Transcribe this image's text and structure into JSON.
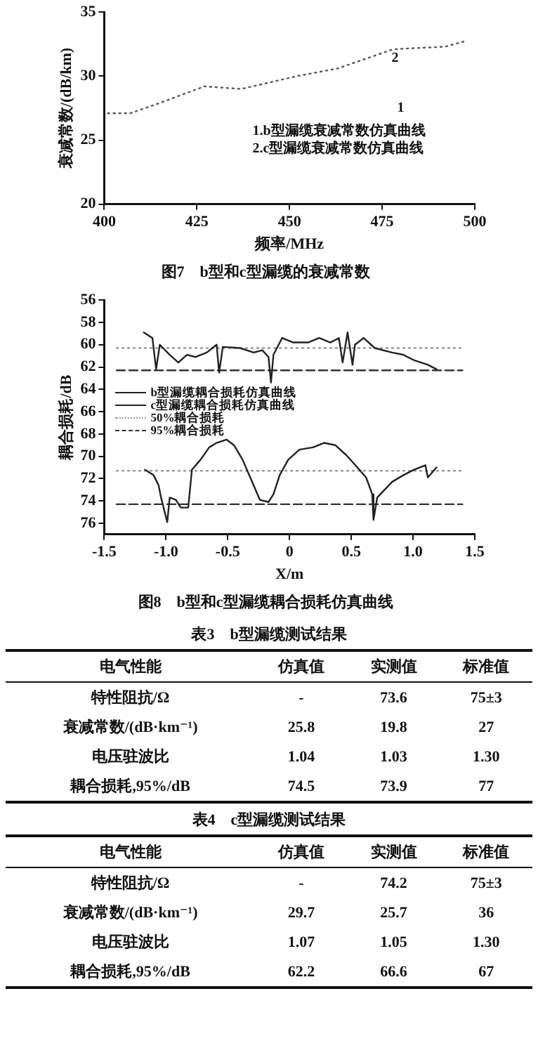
{
  "chart_data": [
    {
      "type": "line",
      "title": "图7　b型和c型漏缆的衰减常数",
      "xlabel": "频率/MHz",
      "ylabel": "衰减常数/(dB/km)",
      "xlim": [
        400,
        500
      ],
      "ylim": [
        20,
        35
      ],
      "xticks": [
        400,
        425,
        450,
        475,
        500
      ],
      "yticks": [
        20,
        25,
        30,
        35
      ],
      "series": [
        {
          "color": "#555555",
          "line_style": "dotted",
          "x": [
            401,
            407,
            414,
            427,
            437,
            443,
            452,
            463,
            478,
            492,
            497
          ],
          "values": [
            27.1,
            27.1,
            27.8,
            29.2,
            29.0,
            29.4,
            30.0,
            30.6,
            32.1,
            32.3,
            32.7
          ]
        }
      ],
      "annotations": [
        "1.b型漏缆衰减常数仿真曲线",
        "2.c型漏缆衰减常数仿真曲线",
        "2",
        "1"
      ]
    },
    {
      "type": "line",
      "title": "图8　b型和c型漏缆耦合损耗仿真曲线",
      "xlabel": "X/m",
      "ylabel": "耦合损耗/dB",
      "xlim": [
        -1.5,
        1.5
      ],
      "ylim": [
        77,
        56
      ],
      "xticks": [
        -1.5,
        {
          "value": -1,
          "label": "-1.0"
        },
        -0.5,
        0,
        0.5,
        {
          "value": 1,
          "label": "1.0"
        },
        1.5
      ],
      "yticks": [
        56,
        58,
        60,
        62,
        64,
        66,
        68,
        70,
        72,
        74,
        76
      ],
      "legend": "left",
      "series": [
        {
          "name": "b型漏缆耦合损耗仿真曲线",
          "color": "#222222",
          "line_style": "solid",
          "x": [
            -1.18,
            -1.11,
            -1.08,
            -1.05,
            -0.97,
            -0.9,
            -0.83,
            -0.76,
            -0.67,
            -0.59,
            -0.57,
            -0.54,
            -0.4,
            -0.29,
            -0.22,
            -0.17,
            -0.15,
            -0.13,
            -0.06,
            0.03,
            0.15,
            0.24,
            0.33,
            0.4,
            0.43,
            0.47,
            0.51,
            0.53,
            0.6,
            0.69,
            0.83,
            0.92,
            1.01,
            1.12,
            1.19
          ],
          "values": [
            58.9,
            59.4,
            62.2,
            60.0,
            60.9,
            61.6,
            60.9,
            61.1,
            60.7,
            60.0,
            62.5,
            60.2,
            60.3,
            60.7,
            60.5,
            61.1,
            63.4,
            60.9,
            59.4,
            59.8,
            59.8,
            59.4,
            59.8,
            59.4,
            61.6,
            58.9,
            61.8,
            60.0,
            59.4,
            60.3,
            60.7,
            60.9,
            61.4,
            61.8,
            62.2
          ]
        },
        {
          "name": "c型漏缆耦合损耗仿真曲线",
          "color": "#222222",
          "line_style": "solid",
          "x": [
            -1.17,
            -1.1,
            -1.06,
            -1.04,
            -0.99,
            -0.97,
            -0.92,
            -0.88,
            -0.82,
            -0.79,
            -0.72,
            -0.65,
            -0.59,
            -0.51,
            -0.45,
            -0.38,
            -0.31,
            -0.24,
            -0.17,
            -0.13,
            -0.08,
            -0.01,
            0.08,
            0.19,
            0.28,
            0.37,
            0.46,
            0.55,
            0.62,
            0.67,
            0.68,
            0.71,
            0.83,
            0.92,
            1.01,
            1.1,
            1.12,
            1.19
          ],
          "values": [
            71.2,
            71.7,
            72.6,
            73.7,
            75.9,
            73.7,
            73.9,
            74.6,
            74.6,
            71.2,
            70.3,
            69.2,
            68.8,
            68.5,
            69.0,
            70.3,
            72.1,
            73.9,
            74.1,
            73.4,
            71.7,
            70.3,
            69.4,
            69.2,
            68.8,
            69.0,
            69.9,
            71.0,
            71.9,
            73.4,
            75.7,
            73.7,
            72.3,
            71.7,
            71.2,
            70.8,
            71.9,
            71.0
          ]
        },
        {
          "name": "50%耦合损耗",
          "color": "#999999",
          "line_style": "dotted",
          "x": [
            -1.4,
            1.4
          ],
          "values": [
            60.3,
            60.3
          ]
        },
        {
          "name": "95%耦合损耗",
          "color": "#333333",
          "line_style": "dashed",
          "x": [
            -1.4,
            1.4
          ],
          "values": [
            62.3,
            62.3
          ]
        },
        {
          "color": "#999999",
          "line_style": "dotted",
          "x": [
            -1.4,
            1.4
          ],
          "values": [
            71.3,
            71.3
          ]
        },
        {
          "color": "#333333",
          "line_style": "dashed",
          "x": [
            -1.4,
            1.4
          ],
          "values": [
            74.3,
            74.3
          ]
        }
      ]
    },
    {
      "type": "other",
      "title": "表3　b型漏缆测试结果",
      "categories": [
        "电气性能",
        "仿真值",
        "实测值",
        "标准值"
      ],
      "y_categories": [
        "特性阻抗/Ω",
        "衰减常数/(dB·km⁻¹)",
        "电压驻波比",
        "耦合损耗,95%/dB"
      ],
      "cell_labels": [
        [
          "-",
          "73.6",
          "75±3"
        ],
        [
          "25.8",
          "19.8",
          "27"
        ],
        [
          "1.04",
          "1.03",
          "1.30"
        ],
        [
          "74.5",
          "73.9",
          "77"
        ]
      ]
    },
    {
      "type": "other",
      "title": "表4　c型漏缆测试结果",
      "categories": [
        "电气性能",
        "仿真值",
        "实测值",
        "标准值"
      ],
      "y_categories": [
        "特性阻抗/Ω",
        "衰减常数/(dB·km⁻¹)",
        "电压驻波比",
        "耦合损耗,95%/dB"
      ],
      "cell_labels": [
        [
          "-",
          "74.2",
          "75±3"
        ],
        [
          "29.7",
          "25.7",
          "36"
        ],
        [
          "1.07",
          "1.05",
          "1.30"
        ],
        [
          "62.2",
          "66.6",
          "67"
        ]
      ]
    }
  ]
}
